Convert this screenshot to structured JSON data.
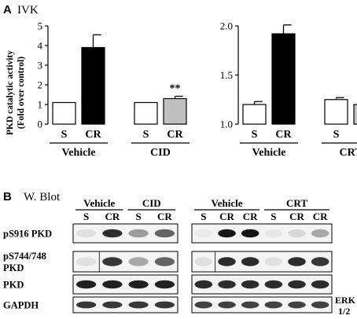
{
  "panel_a": {
    "letter": "A",
    "title": "IVK",
    "ylabel_line1": "PKD catalytic activity",
    "ylabel_line2": "(Fold over control)"
  },
  "panel_b": {
    "letter": "B",
    "title": "W. Blot"
  },
  "chart_data": [
    {
      "type": "bar",
      "ylabel": "PKD catalytic activity (Fold over control)",
      "ylim": [
        0,
        5
      ],
      "yticks": [
        "0",
        "1",
        "2",
        "3",
        "4",
        "5"
      ],
      "categories": [
        "S",
        "CR",
        "S",
        "CR"
      ],
      "groups": [
        "Vehicle",
        "CID"
      ],
      "values": [
        1.1,
        3.9,
        1.1,
        1.3
      ],
      "errors": [
        0,
        0.65,
        0,
        0.12
      ],
      "bar_colors": [
        "#ffffff",
        "#000000",
        "#ffffff",
        "#c0c0c0"
      ],
      "annotations": [
        {
          "bar": 3,
          "text": "**"
        }
      ]
    },
    {
      "type": "bar",
      "ylim": [
        1.0,
        2.0
      ],
      "yticks": [
        "1.0",
        "1.5",
        "2.0"
      ],
      "categories": [
        "S",
        "CR",
        "S",
        "CR"
      ],
      "groups": [
        "Vehicle",
        "CRT"
      ],
      "values": [
        1.2,
        1.92,
        1.25,
        1.2
      ],
      "errors": [
        0.03,
        0.09,
        0.02,
        0.02
      ],
      "bar_colors": [
        "#ffffff",
        "#000000",
        "#ffffff",
        "#c0c0c0"
      ],
      "annotations": [
        {
          "bar": 3,
          "text": "**"
        }
      ]
    }
  ],
  "blot_left": {
    "groups": [
      "Vehicle",
      "CID"
    ],
    "lanes": [
      "S",
      "CR",
      "S",
      "CR"
    ],
    "rows": [
      {
        "label_line1": "pS916 PKD",
        "label_line2": "",
        "intensities": [
          0.05,
          0.85,
          0.35,
          0.6
        ]
      },
      {
        "label_line1": "pS744/748",
        "label_line2": "PKD",
        "intensities": [
          0.05,
          0.8,
          0.3,
          0.6
        ]
      },
      {
        "label_line1": "PKD",
        "label_line2": "",
        "intensities": [
          0.9,
          0.9,
          0.9,
          0.9
        ]
      },
      {
        "label_line1": "GAPDH",
        "label_line2": "",
        "intensities": [
          0.8,
          0.8,
          0.8,
          0.8
        ]
      }
    ]
  },
  "blot_right": {
    "groups": [
      "Vehicle",
      "CRT"
    ],
    "lanes": [
      "S",
      "CR",
      "CR",
      "S",
      "CR",
      "CR"
    ],
    "rows": [
      {
        "intensities": [
          0.0,
          0.95,
          0.95,
          0.02,
          0.08,
          0.3
        ]
      },
      {
        "intensities": [
          0.05,
          0.85,
          0.85,
          0.05,
          0.85,
          0.8
        ]
      },
      {
        "intensities": [
          0.85,
          0.85,
          0.85,
          0.85,
          0.85,
          0.85
        ]
      },
      {
        "intensities": [
          0.75,
          0.75,
          0.75,
          0.75,
          0.75,
          0.75
        ]
      }
    ],
    "erk_label_line1": "ERK",
    "erk_label_line2": "1/2"
  }
}
